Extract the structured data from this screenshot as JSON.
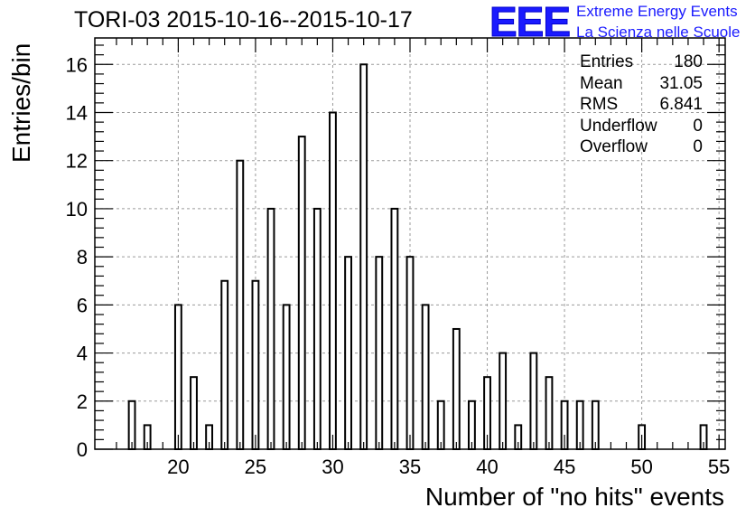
{
  "title": "TORI-03 2015-10-16--2015-10-17",
  "logo": {
    "mark": "EEE",
    "line1": "Extreme Energy Events",
    "line2": "La Scienza nelle Scuole"
  },
  "stats": [
    {
      "name": "Entries",
      "value": "180"
    },
    {
      "name": "Mean",
      "value": "31.05"
    },
    {
      "name": "RMS",
      "value": "6.841"
    },
    {
      "name": "Underflow",
      "value": "0"
    },
    {
      "name": "Overflow",
      "value": "0"
    }
  ],
  "chart_data": {
    "type": "bar",
    "style": "histogram-outline",
    "title": "TORI-03 2015-10-16--2015-10-17",
    "xlabel": "Number of \"no hits\" events",
    "ylabel": "Entries/bin",
    "xlim": [
      14.6,
      55.4
    ],
    "ylim": [
      0,
      17.1
    ],
    "xticks": [
      20,
      25,
      30,
      35,
      40,
      45,
      50,
      55
    ],
    "yticks": [
      0,
      2,
      4,
      6,
      8,
      10,
      12,
      14,
      16
    ],
    "grid": true,
    "bin_width": 0.4,
    "x": [
      17,
      18,
      20,
      21,
      22,
      23,
      24,
      25,
      26,
      27,
      28,
      29,
      30,
      31,
      32,
      33,
      34,
      35,
      36,
      37,
      38,
      39,
      40,
      41,
      42,
      43,
      44,
      45,
      46,
      47,
      50,
      54
    ],
    "values": [
      2,
      1,
      6,
      3,
      1,
      7,
      12,
      7,
      10,
      6,
      13,
      10,
      14,
      8,
      16,
      8,
      10,
      8,
      6,
      2,
      5,
      2,
      3,
      4,
      1,
      4,
      3,
      2,
      2,
      2,
      1,
      1
    ]
  }
}
